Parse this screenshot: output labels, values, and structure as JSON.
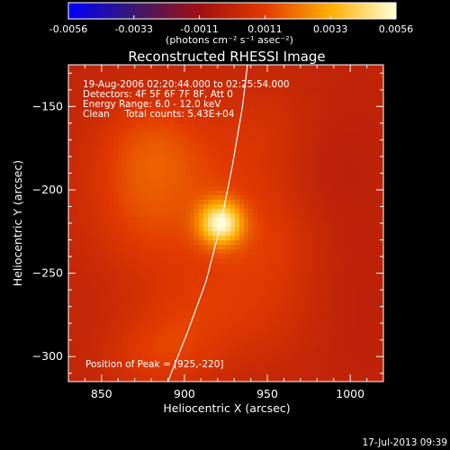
{
  "colorbar": {
    "tick_labels": [
      "-0.0056",
      "-0.0033",
      "-0.0011",
      "0.0011",
      "0.0033",
      "0.0056"
    ],
    "unit_label": "(photons cm⁻² s⁻¹ asec⁻²)"
  },
  "chart_data": {
    "type": "heatmap",
    "title": "Reconstructed RHESSI Image",
    "xlabel": "Heliocentric X (arcsec)",
    "ylabel": "Heliocentric Y (arcsec)",
    "xlim": [
      830,
      1020
    ],
    "ylim": [
      -315,
      -125
    ],
    "x_ticks": [
      850,
      900,
      950,
      1000
    ],
    "y_ticks": [
      -150,
      -200,
      -250,
      -300
    ],
    "color_range": [
      -0.0056,
      0.0056
    ],
    "colormap": [
      "#0000ff",
      "#3a1870",
      "#a01010",
      "#e23a00",
      "#ffb000",
      "#ffffd8"
    ],
    "annotations": [
      "19-Aug-2006 02:20:44.000 to 02:25:54.000",
      "Detectors: 4F 5F 6F 7F 8F, Att 0",
      "Energy Range: 6.0 - 12.0 keV",
      "Clean     Total counts: 5.43E+04"
    ],
    "peak_label": "Position of Peak = [925,-220]",
    "peak": {
      "x": 925,
      "y": -220,
      "value": 0.0056
    },
    "limb_line": [
      [
        890,
        -315
      ],
      [
        902,
        -285
      ],
      [
        913,
        -255
      ],
      [
        922,
        -220
      ],
      [
        929,
        -185
      ],
      [
        935,
        -150
      ],
      [
        938,
        -125
      ]
    ],
    "emission_blobs": [
      {
        "x": 922,
        "y": -220,
        "sx": 9,
        "sy": 9,
        "v": 0.0045
      },
      {
        "x": 905,
        "y": -205,
        "sx": 40,
        "sy": 35,
        "v": 0.0012
      },
      {
        "x": 880,
        "y": -170,
        "sx": 22,
        "sy": 20,
        "v": 0.0008
      },
      {
        "x": 872,
        "y": -205,
        "sx": 20,
        "sy": 28,
        "v": 0.0006
      },
      {
        "x": 950,
        "y": -160,
        "sx": 20,
        "sy": 22,
        "v": 0.0004
      },
      {
        "x": 935,
        "y": -270,
        "sx": 30,
        "sy": 25,
        "v": 0.0008
      },
      {
        "x": 895,
        "y": -285,
        "sx": 22,
        "sy": 20,
        "v": 0.0006
      },
      {
        "x": 880,
        "y": -300,
        "sx": 22,
        "sy": 15,
        "v": 0.0007
      },
      {
        "x": 955,
        "y": -230,
        "sx": 18,
        "sy": 20,
        "v": 0.0005
      },
      {
        "x": 990,
        "y": -190,
        "sx": 22,
        "sy": 30,
        "v": -0.0003
      },
      {
        "x": 1005,
        "y": -270,
        "sx": 22,
        "sy": 30,
        "v": -0.0002
      }
    ]
  },
  "footer": {
    "timestamp": "17-Jul-2013 09:39"
  }
}
